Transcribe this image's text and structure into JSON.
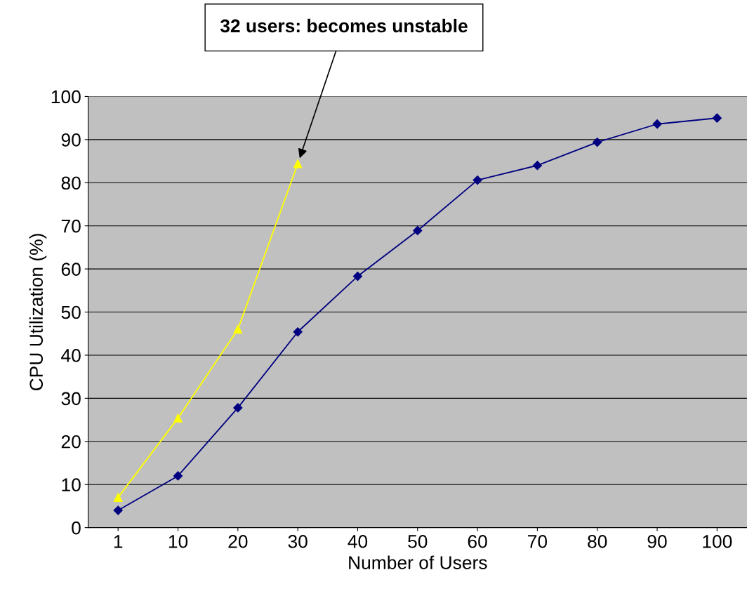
{
  "chart_data": {
    "type": "line",
    "xlabel": "Number of Users",
    "ylabel": "CPU Utilization (%)",
    "categories": [
      "1",
      "10",
      "20",
      "30",
      "40",
      "50",
      "60",
      "70",
      "80",
      "90",
      "100"
    ],
    "series": [
      {
        "color": "#ffff00",
        "marker": "triangle",
        "values": [
          7,
          25.4,
          46,
          84.4,
          null,
          null,
          null,
          null,
          null,
          null,
          null
        ]
      },
      {
        "color": "#000080",
        "marker": "diamond",
        "values": [
          4,
          12,
          27.8,
          45.4,
          58.3,
          68.9,
          80.6,
          84,
          89.4,
          93.6,
          95
        ]
      }
    ],
    "ylim": [
      0,
      100
    ],
    "yticks": [
      0,
      10,
      20,
      30,
      40,
      50,
      60,
      70,
      80,
      90,
      100
    ],
    "grid": "y",
    "legend": false,
    "annotations": [
      "32 users: becomes unstable"
    ]
  }
}
